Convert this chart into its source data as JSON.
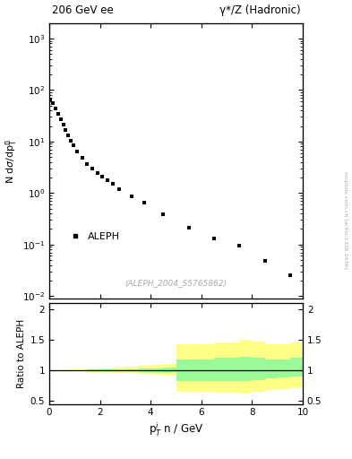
{
  "title_left": "206 GeV ee",
  "title_right": "γ*/Z (Hadronic)",
  "ylabel_main": "N dσ/dp$_T^n$",
  "ylabel_ratio": "Ratio to ALEPH",
  "xlabel": "p$_T^i$ n / GeV",
  "ref_label": "ALEPH",
  "ref_note": "(ALEPH_2004_S5765862)",
  "watermark": "mcplots.cern.ch [arXiv:1306.3436]",
  "data_x": [
    0.05,
    0.15,
    0.25,
    0.35,
    0.45,
    0.55,
    0.65,
    0.75,
    0.85,
    0.95,
    1.1,
    1.3,
    1.5,
    1.7,
    1.9,
    2.1,
    2.3,
    2.5,
    2.75,
    3.25,
    3.75,
    4.5,
    5.5,
    6.5,
    7.5,
    8.5,
    9.5
  ],
  "data_y": [
    65.0,
    55.0,
    44.0,
    35.0,
    27.0,
    21.0,
    17.0,
    13.0,
    10.5,
    8.5,
    6.5,
    4.8,
    3.6,
    3.0,
    2.4,
    2.1,
    1.8,
    1.5,
    1.2,
    0.85,
    0.65,
    0.38,
    0.21,
    0.13,
    0.095,
    0.048,
    0.025
  ],
  "xlim": [
    0,
    10
  ],
  "ylim_main": [
    0.009,
    2000
  ],
  "ylim_ratio": [
    0.45,
    2.1
  ],
  "ratio_bins_x": [
    0.0,
    0.5,
    1.0,
    1.5,
    2.0,
    2.5,
    3.0,
    3.5,
    4.0,
    4.5,
    5.0,
    5.5,
    6.5,
    7.5,
    8.0,
    8.5,
    9.0,
    9.5,
    10.0
  ],
  "ratio_green_lo": [
    0.998,
    0.996,
    0.993,
    0.99,
    0.987,
    0.984,
    0.98,
    0.975,
    0.97,
    0.965,
    0.83,
    0.83,
    0.82,
    0.82,
    0.84,
    0.87,
    0.88,
    0.9
  ],
  "ratio_green_hi": [
    1.002,
    1.004,
    1.007,
    1.01,
    1.013,
    1.017,
    1.022,
    1.028,
    1.035,
    1.042,
    1.18,
    1.18,
    1.2,
    1.22,
    1.2,
    1.18,
    1.18,
    1.2
  ],
  "ratio_yellow_lo": [
    0.994,
    0.99,
    0.985,
    0.978,
    0.97,
    0.962,
    0.953,
    0.942,
    0.93,
    0.918,
    0.65,
    0.65,
    0.63,
    0.62,
    0.65,
    0.68,
    0.69,
    0.7
  ],
  "ratio_yellow_hi": [
    1.006,
    1.01,
    1.016,
    1.024,
    1.033,
    1.043,
    1.055,
    1.068,
    1.082,
    1.098,
    1.42,
    1.42,
    1.45,
    1.5,
    1.47,
    1.43,
    1.42,
    1.45
  ],
  "marker_color": "black",
  "marker_style": "s",
  "marker_size": 3.5,
  "green_color": "#98fb98",
  "yellow_color": "#ffff88",
  "bg_color": "#ffffff"
}
